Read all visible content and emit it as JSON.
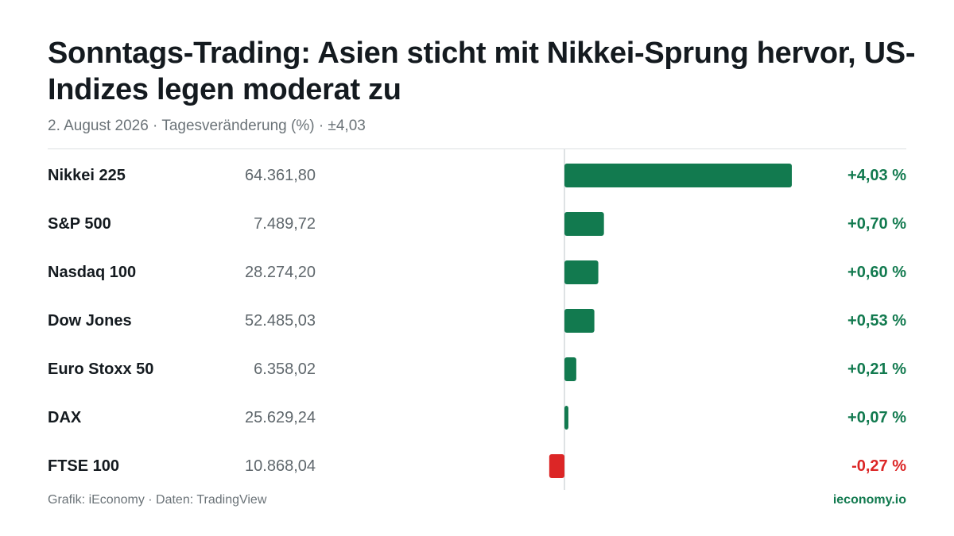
{
  "title": "Sonntags-Trading: Asien sticht mit Nikkei-Sprung hervor, US-Indizes legen moderat zu",
  "subtitle": "2. August 2026 · Tagesveränderung (%) · ±4,03",
  "footer": {
    "source": "Grafik: iEconomy · Daten: TradingView",
    "brand": "ieconomy.io"
  },
  "colors": {
    "positive": "#127a4f",
    "negative": "#dc2626",
    "brand": "#127a4f"
  },
  "chart_data": {
    "type": "bar",
    "orientation": "horizontal",
    "title": "Sonntags-Trading: Asien sticht mit Nikkei-Sprung hervor, US-Indizes legen moderat zu",
    "xlim": [
      -4.03,
      4.03
    ],
    "categories": [
      "Nikkei 225",
      "S&P 500",
      "Nasdaq 100",
      "Dow Jones",
      "Euro Stoxx 50",
      "DAX",
      "FTSE 100"
    ],
    "values": [
      4.03,
      0.7,
      0.6,
      0.53,
      0.21,
      0.07,
      -0.27
    ],
    "rows": [
      {
        "name": "Nikkei 225",
        "level": "64.361,80",
        "change": 4.03,
        "change_label": "+4,03 %"
      },
      {
        "name": "S&P 500",
        "level": "7.489,72",
        "change": 0.7,
        "change_label": "+0,70 %"
      },
      {
        "name": "Nasdaq 100",
        "level": "28.274,20",
        "change": 0.6,
        "change_label": "+0,60 %"
      },
      {
        "name": "Dow Jones",
        "level": "52.485,03",
        "change": 0.53,
        "change_label": "+0,53 %"
      },
      {
        "name": "Euro Stoxx 50",
        "level": "6.358,02",
        "change": 0.21,
        "change_label": "+0,21 %"
      },
      {
        "name": "DAX",
        "level": "25.629,24",
        "change": 0.07,
        "change_label": "+0,07 %"
      },
      {
        "name": "FTSE 100",
        "level": "10.868,04",
        "change": -0.27,
        "change_label": "-0,27 %"
      }
    ]
  }
}
